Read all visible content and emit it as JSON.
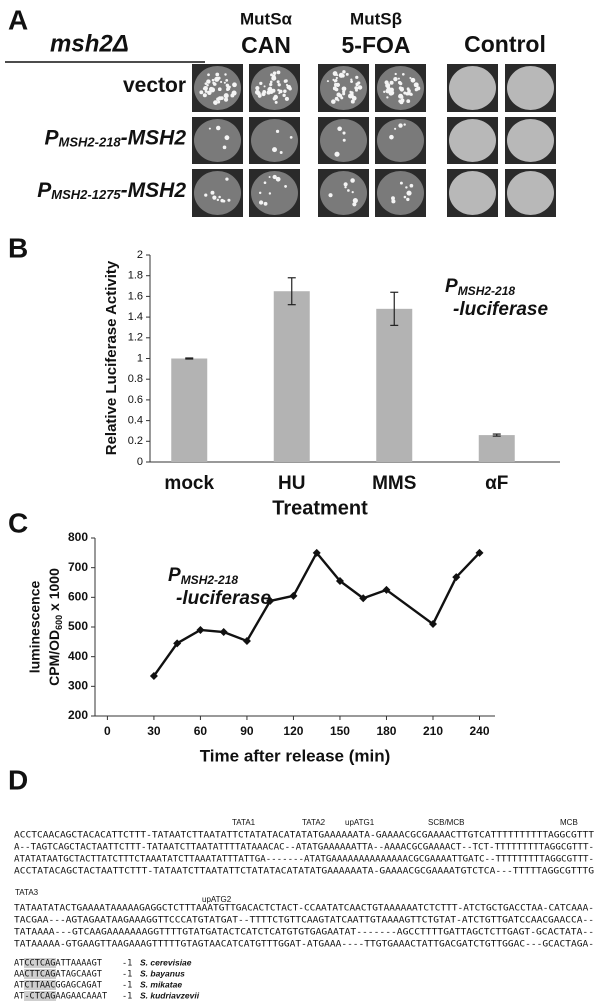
{
  "panel_a": {
    "panel_label": "A",
    "genotype": "msh2Δ",
    "columns": [
      {
        "top": "MutSα",
        "bottom": "CAN"
      },
      {
        "top": "MutSβ",
        "bottom": "5-FOA"
      },
      {
        "top": "Control"
      }
    ],
    "rows": [
      {
        "label": {
          "main": "vector"
        }
      },
      {
        "label": {
          "main": "P",
          "sub": "MSH2-218",
          "suffix": "-MSH2"
        }
      },
      {
        "label": {
          "main": "P",
          "sub": "MSH2-1275",
          "suffix": "-MSH2"
        }
      }
    ]
  },
  "chart_data": [
    {
      "type": "bar",
      "panel_label": "B",
      "annotation": {
        "main": "P",
        "sub": "MSH2-218",
        "suffix": "-luciferase"
      },
      "xlabel": "Treatment",
      "ylabel": "Relative Luciferase Activity",
      "categories": [
        "mock",
        "HU",
        "MMS",
        "αF"
      ],
      "values": [
        1.0,
        1.65,
        1.48,
        0.26
      ],
      "errors": [
        0.005,
        0.13,
        0.16,
        0.01
      ],
      "color": "#b3b3b3",
      "ylim": [
        0,
        2
      ],
      "yticks": [
        0,
        0.2,
        0.4,
        0.6,
        0.8,
        1,
        1.2,
        1.4,
        1.6,
        1.8,
        2
      ]
    },
    {
      "type": "line",
      "panel_label": "C",
      "annotation": {
        "main": "P",
        "sub": "MSH2-218",
        "suffix": "-luciferase"
      },
      "xlabel": "Time after release (min)",
      "ylabel": "luminescence",
      "ylabel2": {
        "main": "CPM/OD",
        "sub": "600",
        "suffix": " x 1000"
      },
      "x": [
        30,
        45,
        60,
        75,
        90,
        105,
        120,
        135,
        150,
        165,
        180,
        210,
        225,
        240
      ],
      "values": [
        335,
        445,
        490,
        483,
        453,
        588,
        605,
        750,
        655,
        597,
        625,
        510,
        668,
        750
      ],
      "color": "#111111",
      "xlim": [
        -8,
        250
      ],
      "xticks": [
        0,
        30,
        60,
        90,
        120,
        150,
        180,
        210,
        240
      ],
      "ylim": [
        200,
        800
      ],
      "yticks": [
        200,
        300,
        400,
        500,
        600,
        700,
        800
      ]
    }
  ],
  "panel_d": {
    "panel_label": "D",
    "blocks": [
      {
        "labels": [
          "TATA1",
          "TATA2",
          "upATG1",
          "SCB/MCB",
          "MCB"
        ],
        "lines": [
          "ACCTCAACAGCTACACATTCTTT-TATAATCTTAATATTCTATATACATATATGAAAAAATA-GAAAACGCGAAAACTTGTCATTTTTTTTTTAGGCGTTT",
          "A--TAGTCAGCTACTAATTCTTT-TATAATCTTAATATTTTATAAACAC--ATATGAAAAAATTA--AAAACGCGAAAACT--TCT-TTTTTTTTTAGGCGTTT-",
          "ATATATAATGCTACTTATCTTTCTAAATATCTTAAATATTTATTGA-------ATATGAAAAAAAAAAAAAACGCGAAAATTGATC--TTTTTTTTTAGGCGTTT-",
          "ACCTATACAGCTACTAATTCTTT-TATAATCTTAATATTCTATATACATATATGAAAAAATA-GAAAACGCGAAAATGTCTCA---TTTTTAGGCGTTTG"
        ]
      },
      {
        "labels": [
          "TATA3",
          "upATG2"
        ],
        "lines": [
          "TATAATATACTGAAAATAAAAAGAGGCTCTTTAAATGTTGACACTCTACT-CCAATATCAACTGTAAAAAATCTCTTT-ATCTGCTGACCTAA-CATCAAA-",
          "TACGAA---AGTAGAATAAGAAAGGTTCCCATGTATGAT--TTTTCTGTTCAAGTATCAATTGTAAAAGTTCTGTAT-ATCTGTTGATCCAACGAACCA--",
          "TATAAAA---GTCAAGAAAAAAAGGTTTTGTATGATACTCATCTCATGTGTGAGAATAT-------AGCCTTTTGATTAGCTCTTGAGT-GCACTATA--",
          "TATAAAAA-GTGAAGTTAAGAAAGTTTTTGTAGTAACATCATGTTTGGAT-ATGAAA----TTGTGAAACTATTGACGATCTGTTGGAC---GCACTAGA-"
        ]
      }
    ],
    "tail": [
      {
        "seq": "ATCCTCAGATTAAAAGT",
        "pos": "-1",
        "species": "S. cerevisiae"
      },
      {
        "seq": "AACTTCAGATAGCAAGT",
        "pos": "-1",
        "species": "S. bayanus"
      },
      {
        "seq": "ATCTTAACGGAGCAGAT",
        "pos": "-1",
        "species": "S. mikatae"
      },
      {
        "seq": "AT-CTCAGAAGAACAAAT",
        "pos": "-1",
        "species": "S. kudriavzevii"
      }
    ]
  }
}
